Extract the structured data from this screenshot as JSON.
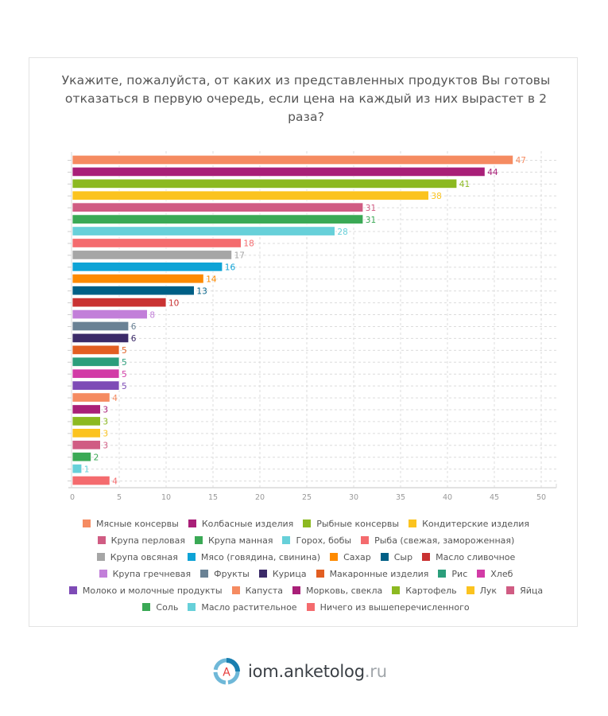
{
  "chart_data": {
    "type": "bar",
    "orientation": "horizontal",
    "title": "Укажите, пожалуйста, от каких из представленных продуктов Вы готовы отказаться в первую очередь, если цена на каждый из них вырастет в 2 раза?",
    "title_lines": [
      "Укажите, пожалуйста, от каких из представленных продуктов Вы готовы",
      "отказаться в первую очередь, если цена на каждый из них вырастет в 2",
      "раза?"
    ],
    "xlabel": "",
    "ylabel": "",
    "xlim": [
      0,
      50
    ],
    "x_ticks": [
      0,
      5,
      10,
      15,
      20,
      25,
      30,
      35,
      40,
      45,
      50
    ],
    "grid": true,
    "legend_position": "bottom",
    "categories": [
      "Мясные консервы",
      "Колбасные изделия",
      "Рыбные консервы",
      "Кондитерские изделия",
      "Крупа перловая",
      "Крупа манная",
      "Горох, бобы",
      "Рыба (свежая, замороженная)",
      "Крупа овсяная",
      "Мясо (говядина, свинина)",
      "Сахар",
      "Сыр",
      "Масло сливочное",
      "Крупа гречневая",
      "Фрукты",
      "Курица",
      "Макаронные изделия",
      "Рис",
      "Хлеб",
      "Молоко и молочные продукты",
      "Капуста",
      "Морковь, свекла",
      "Картофель",
      "Лук",
      "Яйца",
      "Соль",
      "Масло растительное",
      "Ничего из вышеперечисленного"
    ],
    "values": [
      47,
      44,
      41,
      38,
      31,
      31,
      28,
      18,
      17,
      16,
      14,
      13,
      10,
      8,
      6,
      6,
      5,
      5,
      5,
      5,
      4,
      3,
      3,
      3,
      3,
      2,
      1,
      4
    ],
    "colors": [
      "#f58b61",
      "#a91f78",
      "#8cb921",
      "#fbc31f",
      "#d05c83",
      "#3aa955",
      "#67d0d9",
      "#f46b6e",
      "#a6a6a6",
      "#0ea3d6",
      "#fe8a00",
      "#005f86",
      "#c93232",
      "#c27fd9",
      "#6a8295",
      "#3b2a68",
      "#e25e21",
      "#2b9e7b",
      "#d23ba6",
      "#7e4bb6",
      "#f58b61",
      "#a91f78",
      "#8cb921",
      "#fbc31f",
      "#d05c83",
      "#3aa955",
      "#67d0d9",
      "#f46b6e"
    ]
  },
  "footer": {
    "logo_main": "iom.anketolog",
    "logo_tld": ".ru",
    "logo_letter": "A"
  }
}
